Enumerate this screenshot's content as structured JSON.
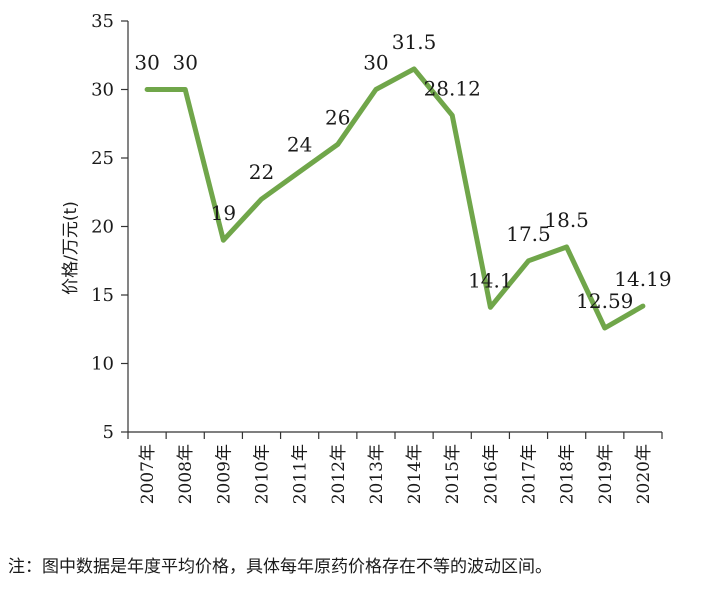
{
  "chart_data": {
    "type": "line",
    "categories": [
      "2007年",
      "2008年",
      "2009年",
      "2010年",
      "2011年",
      "2012年",
      "2013年",
      "2014年",
      "2015年",
      "2016年",
      "2017年",
      "2018年",
      "2019年",
      "2020年"
    ],
    "values": [
      30,
      30,
      19,
      22,
      24,
      26,
      30,
      31.5,
      28.12,
      14.1,
      17.5,
      18.5,
      12.59,
      14.19
    ],
    "data_labels": [
      "30",
      "30",
      "19",
      "22",
      "24",
      "26",
      "30",
      "31.5",
      "28.12",
      "14.1",
      "17.5",
      "18.5",
      "12.59",
      "14.19"
    ],
    "ylabel": "价格/万元(t)",
    "xlabel": "",
    "ylim": [
      5,
      35
    ],
    "yticks": [
      5,
      10,
      15,
      20,
      25,
      30,
      35
    ],
    "grid": false,
    "legend": "none",
    "line_color": "#70a64a"
  },
  "footnote": "注：图中数据是年度平均价格，具体每年原药价格存在不等的波动区间。"
}
